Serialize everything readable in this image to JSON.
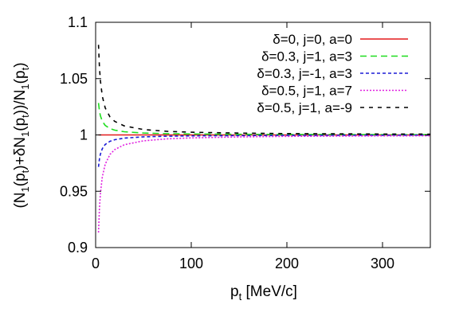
{
  "chart_data": {
    "type": "line",
    "xlim": [
      0,
      350
    ],
    "ylim": [
      0.9,
      1.1
    ],
    "x_ticks": [
      0,
      100,
      200,
      300
    ],
    "y_ticks": [
      0.9,
      0.95,
      1.0,
      1.05,
      1.1
    ],
    "x_tick_labels": [
      "0",
      "100",
      "200",
      "300"
    ],
    "y_tick_labels": [
      "0.9",
      "0.95",
      "1",
      "1.05",
      "1.1"
    ],
    "xlabel": {
      "main": "p",
      "sub": "t",
      "tail": " [MeV/c]"
    },
    "ylabel": {
      "parts": [
        {
          "text": "(N",
          "sub": false
        },
        {
          "text": "1",
          "sub": true
        },
        {
          "text": "(p",
          "sub": false
        },
        {
          "text": "t",
          "sub": true
        },
        {
          "text": ")+δN",
          "sub": false
        },
        {
          "text": "1",
          "sub": true
        },
        {
          "text": "(p",
          "sub": false
        },
        {
          "text": "t",
          "sub": true
        },
        {
          "text": "))/N",
          "sub": false
        },
        {
          "text": "1",
          "sub": true
        },
        {
          "text": "(p",
          "sub": false
        },
        {
          "text": "t",
          "sub": true
        },
        {
          "text": ")",
          "sub": false
        }
      ]
    },
    "legend_position": "top-right",
    "grid": false,
    "series": [
      {
        "name": "δ=0, j=0, a=0",
        "color": "#e41a1c",
        "dash": "none",
        "amplitude": 0.0,
        "x": [
          3,
          5,
          10,
          20,
          50,
          100,
          200,
          350
        ]
      },
      {
        "name": "δ=0.3, j=1, a=3",
        "color": "#1fdd1f",
        "dash": "8,5",
        "amplitude": 0.085,
        "x": [
          3,
          4,
          5,
          7,
          10,
          15,
          20,
          30,
          50,
          75,
          100,
          150,
          200,
          250,
          300,
          350
        ]
      },
      {
        "name": "δ=0.3, j=-1, a=3",
        "color": "#1b1bd6",
        "dash": "4,3",
        "amplitude": -0.085,
        "x": [
          3,
          4,
          5,
          7,
          10,
          15,
          20,
          30,
          50,
          75,
          100,
          150,
          200,
          250,
          300,
          350
        ]
      },
      {
        "name": "δ=0.5, j=1, a=7",
        "color": "#e020e0",
        "dash": "2,2",
        "amplitude": -0.26,
        "x": [
          3,
          4,
          5,
          7,
          10,
          15,
          20,
          30,
          50,
          75,
          100,
          150,
          200,
          250,
          300,
          350
        ]
      },
      {
        "name": "δ=0.5, j=1, a=-9",
        "color": "#000000",
        "dash": "5,6",
        "amplitude": 0.24,
        "x": [
          3,
          4,
          5,
          7,
          10,
          15,
          20,
          30,
          50,
          75,
          100,
          150,
          200,
          250,
          300,
          350
        ]
      }
    ]
  }
}
